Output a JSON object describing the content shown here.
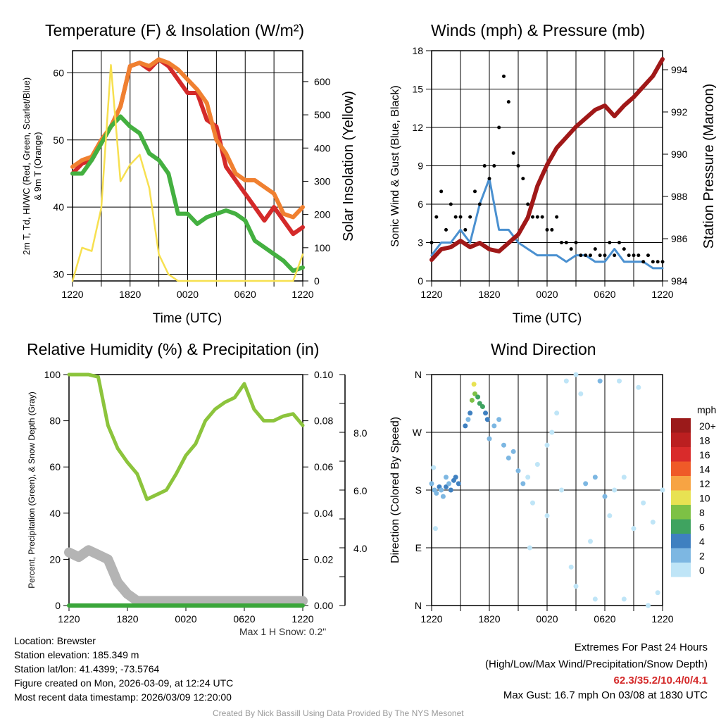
{
  "chart_data": [
    {
      "id": "temp",
      "type": "line",
      "title": "Temperature (F) & Insolation (W/m²)",
      "xlabel": "Time (UTC)",
      "ylabel": "2m T, Td, HI/WC (Red, Green, Scarlet/Blue) & 9m T (Orange)",
      "ylabel_right": "Solar Insolation (Yellow)",
      "xticks": [
        "1220",
        "1820",
        "0020",
        "0620",
        "1220"
      ],
      "ylim": [
        29,
        63.3
      ],
      "yticks": [
        "30",
        "40",
        "50",
        "60"
      ],
      "ylim_right": [
        0,
        693
      ],
      "yticks_right": [
        "0",
        "100",
        "200",
        "300",
        "400",
        "500",
        "600"
      ],
      "x_hours": [
        0,
        1,
        2,
        3,
        4,
        5,
        6,
        7,
        8,
        9,
        10,
        11,
        12,
        13,
        14,
        15,
        16,
        17,
        18,
        19,
        20,
        21,
        22,
        23,
        24
      ],
      "series": [
        {
          "name": "2m T",
          "color": "#d42a2a",
          "axis": "left",
          "values": [
            45,
            46.5,
            47,
            49.5,
            52,
            55,
            61,
            61.5,
            60.5,
            62,
            61,
            59,
            57,
            57,
            53,
            52,
            46,
            44,
            42,
            40,
            38,
            40,
            38,
            36,
            37
          ]
        },
        {
          "name": "9m T",
          "color": "#f08030",
          "axis": "left",
          "values": [
            46,
            47,
            47.5,
            50,
            52,
            55,
            61,
            61.5,
            61,
            62,
            61.5,
            60.5,
            59,
            57.5,
            55.5,
            50,
            48,
            45,
            44,
            44,
            43,
            42,
            39,
            38.5,
            40
          ]
        },
        {
          "name": "Td",
          "color": "#44b040",
          "axis": "left",
          "values": [
            45,
            45,
            47,
            49.5,
            52,
            53.5,
            52,
            51,
            48,
            47,
            45,
            39,
            39,
            37.5,
            38.5,
            39,
            39.5,
            39,
            38,
            35,
            34,
            33,
            32,
            30.5,
            31
          ]
        },
        {
          "name": "Insolation",
          "color": "#f7e050",
          "axis": "right",
          "values": [
            0,
            100,
            90,
            220,
            650,
            300,
            350,
            380,
            280,
            80,
            20,
            0,
            0,
            0,
            0,
            0,
            0,
            0,
            0,
            0,
            0,
            0,
            0,
            0,
            80
          ]
        }
      ]
    },
    {
      "id": "wind",
      "type": "line",
      "title": "Winds (mph) & Pressure (mb)",
      "xlabel": "Time (UTC)",
      "ylabel": "Sonic Wind & Gust (Blue, Black)",
      "ylabel_right": "Station Pressure (Maroon)",
      "xticks": [
        "1220",
        "1820",
        "0020",
        "0620",
        "1220"
      ],
      "ylim": [
        0,
        18
      ],
      "yticks": [
        "0",
        "3",
        "6",
        "9",
        "12",
        "15",
        "18"
      ],
      "ylim_right": [
        984,
        994.9
      ],
      "yticks_right": [
        "984",
        "986",
        "988",
        "990",
        "992",
        "994"
      ],
      "x_hours": [
        0,
        1,
        2,
        3,
        4,
        5,
        6,
        7,
        8,
        9,
        10,
        11,
        12,
        13,
        14,
        15,
        16,
        17,
        18,
        19,
        20,
        21,
        22,
        23,
        24
      ],
      "series": [
        {
          "name": "Wind",
          "color": "#4a90d0",
          "axis": "left",
          "values": [
            2,
            3,
            3,
            4,
            3,
            6,
            8,
            4,
            4,
            3,
            2.5,
            2,
            2,
            2,
            1.5,
            2,
            2,
            1.5,
            1.5,
            2.5,
            1.5,
            1.5,
            1.5,
            1,
            1
          ]
        },
        {
          "name": "Pressure",
          "color": "#a01818",
          "axis": "right",
          "values": [
            985,
            985.5,
            985.6,
            985.9,
            985.6,
            985.8,
            985.5,
            985.4,
            985.8,
            986.2,
            987,
            988.5,
            989.5,
            990.3,
            990.8,
            991.3,
            991.7,
            992.1,
            992.3,
            991.8,
            992.3,
            992.7,
            993.2,
            993.7,
            994.5
          ]
        }
      ],
      "gusts_halfhourly": [
        3,
        5,
        7,
        4,
        6,
        5,
        5,
        4,
        5,
        7,
        6,
        9,
        8,
        9,
        12,
        16,
        14,
        10,
        9,
        8,
        6,
        5,
        5,
        5,
        4,
        4,
        5,
        3,
        3,
        2.5,
        3,
        2,
        2,
        2,
        2.5,
        2,
        2,
        3,
        2,
        3,
        2.5,
        2,
        2,
        2,
        1.5,
        2,
        1.5,
        1.5,
        1.5
      ]
    },
    {
      "id": "rh",
      "type": "line",
      "title": "Relative Humidity (%) & Precipitation (in)",
      "ylabel": "Percent, Precipitation (Green), & Snow Depth (Gray)",
      "xticks": [
        "1220",
        "1820",
        "0020",
        "0620",
        "1220"
      ],
      "ylim": [
        0,
        100
      ],
      "yticks": [
        "0",
        "20",
        "40",
        "60",
        "80",
        "100"
      ],
      "yticks_right": [
        "0.00",
        "0.02",
        "0.04",
        "0.06",
        "0.08",
        "0.10"
      ],
      "yticks_snow": [
        "4.0",
        "6.0",
        "8.0"
      ],
      "x_hours": [
        0,
        1,
        2,
        3,
        4,
        5,
        6,
        7,
        8,
        9,
        10,
        11,
        12,
        13,
        14,
        15,
        16,
        17,
        18,
        19,
        20,
        21,
        22,
        23,
        24
      ],
      "series": [
        {
          "name": "RH",
          "color": "#8cc43c",
          "values": [
            100,
            100,
            100,
            99,
            78,
            68,
            62,
            57,
            46,
            48,
            50,
            57,
            65,
            70,
            80,
            85,
            88,
            90,
            96,
            85,
            80,
            80,
            82,
            83,
            78
          ]
        },
        {
          "name": "Snow Depth",
          "color": "#b4b4b4",
          "values": [
            23,
            21,
            24,
            22,
            20,
            10,
            5,
            2,
            2,
            2,
            2,
            2,
            2,
            2,
            2,
            2,
            2,
            2,
            2,
            2,
            2,
            2,
            2,
            2,
            2
          ]
        },
        {
          "name": "Precipitation",
          "color": "#3aa63a",
          "values": [
            0,
            0,
            0,
            0,
            0,
            0,
            0,
            0,
            0,
            0,
            0,
            0,
            0,
            0,
            0,
            0,
            0,
            0,
            0,
            0,
            0,
            0,
            0,
            0,
            0
          ]
        }
      ],
      "note": "Max 1 H Snow: 0.2\""
    },
    {
      "id": "dir",
      "type": "scatter",
      "title": "Wind Direction",
      "ylabel": "Direction (Colored By Speed)",
      "xticks": [
        "1220",
        "1820",
        "0020",
        "0620",
        "1220"
      ],
      "yticks": [
        "N",
        "E",
        "S",
        "W",
        "N"
      ],
      "ylim": [
        0,
        360
      ],
      "points": [
        [
          0,
          190,
          3
        ],
        [
          0.3,
          180,
          2
        ],
        [
          0.5,
          175,
          3
        ],
        [
          0.8,
          185,
          4
        ],
        [
          1,
          180,
          3
        ],
        [
          1.2,
          170,
          3
        ],
        [
          1.5,
          185,
          4
        ],
        [
          1.8,
          190,
          3
        ],
        [
          2,
          180,
          4
        ],
        [
          2.3,
          195,
          4
        ],
        [
          2.5,
          200,
          5
        ],
        [
          2.8,
          190,
          4
        ],
        [
          0.2,
          215,
          1
        ],
        [
          0.4,
          120,
          1
        ],
        [
          1.5,
          200,
          2
        ],
        [
          3.5,
          280,
          4
        ],
        [
          3.8,
          290,
          3
        ],
        [
          4,
          300,
          5
        ],
        [
          4.2,
          320,
          8
        ],
        [
          4.5,
          330,
          8
        ],
        [
          4.8,
          325,
          7
        ],
        [
          5,
          315,
          6
        ],
        [
          5.3,
          310,
          7
        ],
        [
          5.6,
          300,
          4
        ],
        [
          5.8,
          290,
          4
        ],
        [
          6,
          260,
          3
        ],
        [
          6.5,
          280,
          3
        ],
        [
          7,
          290,
          3
        ],
        [
          7.5,
          250,
          2
        ],
        [
          8,
          230,
          3
        ],
        [
          8.5,
          240,
          3
        ],
        [
          9,
          210,
          2
        ],
        [
          9.5,
          190,
          2
        ],
        [
          10,
          200,
          1
        ],
        [
          10.5,
          160,
          0
        ],
        [
          11,
          220,
          1
        ],
        [
          12,
          250,
          1
        ],
        [
          12.5,
          270,
          0
        ],
        [
          13,
          300,
          1
        ],
        [
          14,
          350,
          1
        ],
        [
          15,
          360,
          1
        ],
        [
          15.5,
          330,
          1
        ],
        [
          13.5,
          180,
          1
        ],
        [
          14.5,
          60,
          0
        ],
        [
          15,
          30,
          0
        ],
        [
          16,
          190,
          2
        ],
        [
          17,
          200,
          3
        ],
        [
          17.5,
          350,
          2
        ],
        [
          18,
          170,
          2
        ],
        [
          18.5,
          140,
          1
        ],
        [
          19,
          180,
          1
        ],
        [
          19.5,
          350,
          1
        ],
        [
          20,
          200,
          0
        ],
        [
          21,
          120,
          0
        ],
        [
          21.5,
          340,
          0
        ],
        [
          22,
          160,
          1
        ],
        [
          23,
          130,
          0
        ],
        [
          23.5,
          20,
          0
        ],
        [
          24,
          180,
          1
        ],
        [
          10.2,
          90,
          0
        ],
        [
          12,
          140,
          0
        ],
        [
          16.5,
          100,
          1
        ],
        [
          17,
          10,
          0
        ],
        [
          20,
          10,
          0
        ],
        [
          22.5,
          0,
          0
        ],
        [
          4.4,
          345,
          10
        ]
      ],
      "colorbar": {
        "title": "mph",
        "labels": [
          "20+",
          "18",
          "16",
          "14",
          "12",
          "10",
          "8",
          "6",
          "4",
          "2",
          "0"
        ],
        "colors": [
          "#9b1a1a",
          "#bb1f20",
          "#d92b2b",
          "#ef5a28",
          "#f7a443",
          "#e8e252",
          "#7dc145",
          "#3fa360",
          "#3f80c0",
          "#7db7e2",
          "#bfe5f7"
        ]
      }
    }
  ],
  "footer": {
    "location": "Location: Brewster",
    "elevation": "Station elevation: 185.349 m",
    "latlon": "Station lat/lon: 41.4399; -73.5764",
    "created": "Figure created on Mon, 2026-03-09, at 12:24 UTC",
    "recent": "Most recent data timestamp: 2026/03/09 12:20:00",
    "extremes_title": "Extremes For Past 24 Hours",
    "extremes_sub": "(High/Low/Max Wind/Precipitation/Snow Depth)",
    "extremes_values": "62.3/35.2/10.4/0/4.1",
    "max_gust": "Max Gust: 16.7 mph On 03/08 at 1830 UTC",
    "credit": "Created By Nick Bassill Using Data Provided By The NYS Mesonet"
  }
}
